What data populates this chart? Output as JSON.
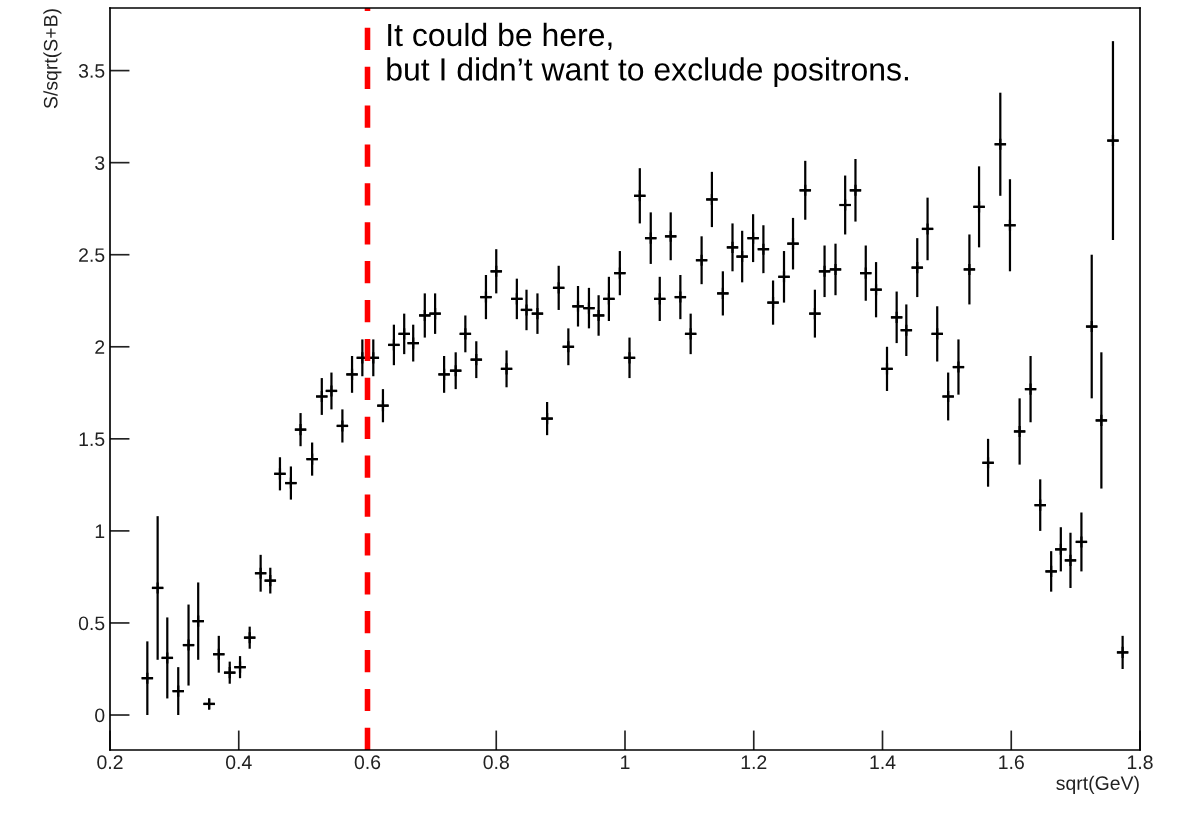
{
  "chart_data": {
    "type": "scatter",
    "xlabel": "sqrt(GeV)",
    "ylabel": "S/sqrt(S+B)",
    "x": [
      0.258,
      0.274,
      0.289,
      0.306,
      0.322,
      0.337,
      0.354,
      0.369,
      0.386,
      0.402,
      0.417,
      0.434,
      0.449,
      0.464,
      0.481,
      0.496,
      0.514,
      0.529,
      0.544,
      0.561,
      0.576,
      0.592,
      0.609,
      0.624,
      0.641,
      0.657,
      0.671,
      0.689,
      0.705,
      0.719,
      0.737,
      0.752,
      0.769,
      0.784,
      0.8,
      0.816,
      0.832,
      0.847,
      0.864,
      0.879,
      0.897,
      0.912,
      0.927,
      0.944,
      0.959,
      0.975,
      0.992,
      1.007,
      1.023,
      1.04,
      1.054,
      1.071,
      1.086,
      1.102,
      1.119,
      1.135,
      1.152,
      1.167,
      1.182,
      1.199,
      1.215,
      1.23,
      1.247,
      1.261,
      1.28,
      1.295,
      1.31,
      1.327,
      1.342,
      1.358,
      1.374,
      1.39,
      1.407,
      1.422,
      1.437,
      1.454,
      1.47,
      1.485,
      1.502,
      1.518,
      1.535,
      1.55,
      1.564,
      1.583,
      1.598,
      1.613,
      1.63,
      1.645,
      1.662,
      1.677,
      1.692,
      1.709,
      1.725,
      1.74,
      1.758,
      1.773
    ],
    "series": [
      {
        "color": "#000000",
        "values": [
          0.2,
          0.69,
          0.31,
          0.13,
          0.38,
          0.51,
          0.06,
          0.33,
          0.23,
          0.26,
          0.42,
          0.77,
          0.73,
          1.31,
          1.26,
          1.55,
          1.39,
          1.73,
          1.76,
          1.57,
          1.85,
          1.94,
          1.94,
          1.68,
          2.01,
          2.07,
          2.02,
          2.17,
          2.18,
          1.85,
          1.87,
          2.07,
          1.93,
          2.27,
          2.41,
          1.88,
          2.26,
          2.2,
          2.18,
          1.61,
          2.32,
          2.0,
          2.22,
          2.21,
          2.17,
          2.26,
          2.4,
          1.94,
          2.82,
          2.59,
          2.26,
          2.6,
          2.27,
          2.07,
          2.47,
          2.8,
          2.29,
          2.54,
          2.49,
          2.59,
          2.53,
          2.24,
          2.38,
          2.56,
          2.85,
          2.18,
          2.41,
          2.42,
          2.77,
          2.85,
          2.4,
          2.31,
          1.88,
          2.16,
          2.09,
          2.43,
          2.64,
          2.07,
          1.73,
          1.89,
          2.42,
          2.76,
          1.37,
          3.1,
          2.66,
          1.54,
          1.77,
          1.14,
          0.78,
          0.9,
          0.84,
          0.94,
          2.11,
          1.6,
          3.12,
          0.34
        ],
        "errors": [
          0.2,
          0.39,
          0.22,
          0.13,
          0.22,
          0.21,
          0.03,
          0.1,
          0.06,
          0.06,
          0.06,
          0.1,
          0.07,
          0.09,
          0.09,
          0.09,
          0.09,
          0.1,
          0.1,
          0.09,
          0.1,
          0.1,
          0.1,
          0.09,
          0.11,
          0.11,
          0.1,
          0.12,
          0.11,
          0.1,
          0.1,
          0.1,
          0.1,
          0.12,
          0.12,
          0.1,
          0.11,
          0.11,
          0.11,
          0.09,
          0.12,
          0.1,
          0.11,
          0.11,
          0.11,
          0.12,
          0.12,
          0.11,
          0.15,
          0.14,
          0.12,
          0.13,
          0.12,
          0.11,
          0.13,
          0.15,
          0.12,
          0.13,
          0.14,
          0.13,
          0.13,
          0.12,
          0.14,
          0.14,
          0.16,
          0.13,
          0.14,
          0.14,
          0.16,
          0.17,
          0.15,
          0.15,
          0.12,
          0.14,
          0.14,
          0.16,
          0.17,
          0.15,
          0.13,
          0.15,
          0.19,
          0.22,
          0.13,
          0.28,
          0.25,
          0.18,
          0.18,
          0.14,
          0.11,
          0.12,
          0.15,
          0.16,
          0.39,
          0.37,
          0.54,
          0.09
        ],
        "xerrors": [
          0.009,
          0.009,
          0.009,
          0.009,
          0.009,
          0.009,
          0.009,
          0.009,
          0.009,
          0.009,
          0.009,
          0.009,
          0.009,
          0.009,
          0.009,
          0.009,
          0.009,
          0.009,
          0.009,
          0.009,
          0.009,
          0.009,
          0.009,
          0.009,
          0.009,
          0.009,
          0.009,
          0.009,
          0.009,
          0.009,
          0.009,
          0.009,
          0.009,
          0.009,
          0.009,
          0.009,
          0.009,
          0.009,
          0.009,
          0.009,
          0.009,
          0.009,
          0.009,
          0.009,
          0.009,
          0.009,
          0.009,
          0.009,
          0.009,
          0.009,
          0.009,
          0.009,
          0.009,
          0.009,
          0.009,
          0.009,
          0.009,
          0.009,
          0.009,
          0.009,
          0.009,
          0.009,
          0.009,
          0.009,
          0.009,
          0.009,
          0.009,
          0.009,
          0.009,
          0.009,
          0.009,
          0.009,
          0.009,
          0.009,
          0.009,
          0.009,
          0.009,
          0.009,
          0.009,
          0.009,
          0.009,
          0.009,
          0.009,
          0.009,
          0.009,
          0.009,
          0.009,
          0.009,
          0.009,
          0.009,
          0.009,
          0.009,
          0.009,
          0.009,
          0.009,
          0.009
        ]
      }
    ],
    "marker": "cross",
    "xlim": [
      0.2,
      1.8
    ],
    "xticks": [
      0.2,
      0.4,
      0.6,
      0.8,
      1,
      1.2,
      1.4,
      1.6,
      1.8
    ],
    "ylim": [
      -0.19,
      3.84
    ],
    "yticks": [
      0,
      0.5,
      1,
      1.5,
      2,
      2.5,
      3,
      3.5
    ],
    "ref_lines": [
      {
        "axis": "x",
        "value": 0.6,
        "label": "It could be here,\nbut I didn’t want to exclude positrons.",
        "color": "#ff0000",
        "line_style": "dashed"
      }
    ]
  }
}
